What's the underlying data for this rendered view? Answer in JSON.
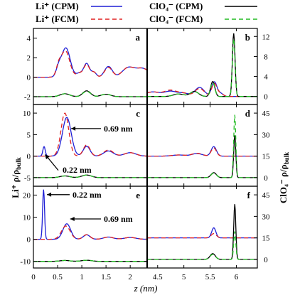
{
  "legend": [
    {
      "label": "Li⁺ (CPM)",
      "color": "#1f1fd6",
      "dash": "solid"
    },
    {
      "label": "Li⁺ (FCM)",
      "color": "#e02020",
      "dash": "dashed"
    },
    {
      "label": "ClO₄⁻ (CPM)",
      "color": "#000000",
      "dash": "solid"
    },
    {
      "label": "ClO₄⁻ (FCM)",
      "color": "#22bb22",
      "dash": "dashed"
    }
  ],
  "axis_labels": {
    "left": "Li⁺ ρ/ρ",
    "left_sub": "bulk",
    "right": "ClO₄⁻ ρ/ρ",
    "right_sub": "bulk",
    "x": "z (nm)"
  },
  "chart_data": {
    "type": "line",
    "x_unit": "nm",
    "panel_rows": [
      {
        "left_yticks": [
          4,
          2,
          0,
          -2
        ],
        "right_yticks": [
          12,
          8,
          4,
          0
        ],
        "left_ylim": [
          -2.8,
          5.0
        ],
        "right_ylim": [
          -1.6,
          13.6
        ],
        "left_panel": "a",
        "right_panel": "b",
        "annotations": []
      },
      {
        "left_yticks": [
          10,
          5,
          0,
          -5
        ],
        "right_yticks": [
          45,
          30,
          15,
          0
        ],
        "left_ylim": [
          -7.0,
          12.0
        ],
        "right_ylim": [
          -6.0,
          51.0
        ],
        "left_panel": "c",
        "right_panel": "d",
        "annotations": [
          {
            "text": "0.69 nm",
            "x_data": 0.69
          },
          {
            "text": "0.22 nm",
            "x_data": 0.22
          }
        ]
      },
      {
        "left_yticks": [
          20,
          10,
          0,
          -10
        ],
        "right_yticks": [
          45,
          30,
          15,
          0
        ],
        "left_ylim": [
          -13.0,
          24.0
        ],
        "right_ylim": [
          -6.0,
          51.0
        ],
        "left_panel": "e",
        "right_panel": "f",
        "annotations": [
          {
            "text": "0.22 nm",
            "x_data": 0.22
          },
          {
            "text": "0.69 nm",
            "x_data": 0.69
          }
        ]
      }
    ],
    "x_left": {
      "ticks": [
        "0",
        "0.5",
        "1",
        "1.5",
        "2"
      ],
      "values": [
        0,
        0.5,
        1.0,
        1.5,
        2.0
      ],
      "xlim": [
        0,
        2.35
      ]
    },
    "x_right": {
      "ticks": [
        "4.5",
        "5",
        "5.5",
        "6"
      ],
      "values": [
        4.5,
        5.0,
        5.5,
        6.0
      ],
      "xlim": [
        4.3,
        6.4
      ]
    },
    "series": [
      {
        "name": "Li+ (CPM) row a left",
        "x": [
          0,
          0.35,
          0.5,
          0.6,
          0.68,
          0.8,
          0.95,
          1.1,
          1.25,
          1.4,
          1.55,
          1.7,
          1.9,
          2.1,
          2.35
        ],
        "y": [
          0,
          0.1,
          1.2,
          2.5,
          3.1,
          2.0,
          0.5,
          1.5,
          0.6,
          1.0,
          1.2,
          0.7,
          1.0,
          0.9,
          0.9
        ]
      }
    ]
  }
}
